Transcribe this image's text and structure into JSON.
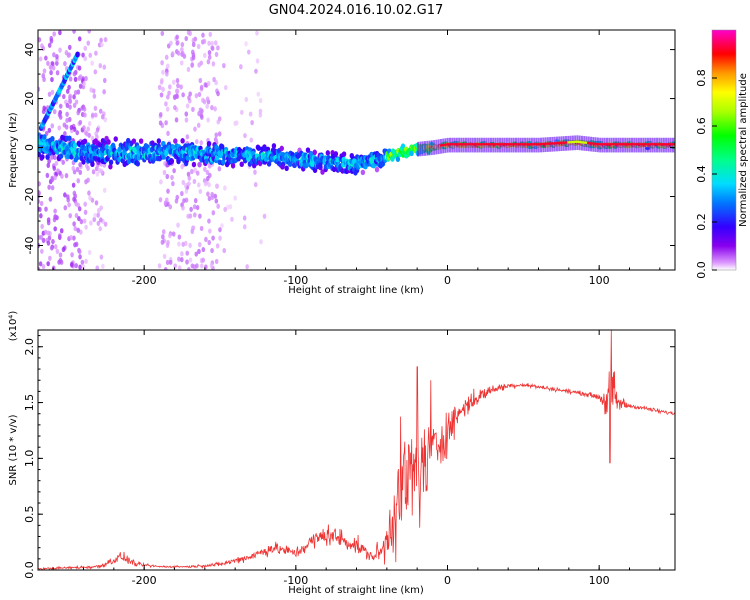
{
  "title": "GN04.2024.016.10.02.G17",
  "chart_data": [
    {
      "type": "heatmap",
      "name": "spectrogram",
      "xlabel": "Height of straight line (km)",
      "ylabel": "Frequency (Hz)",
      "xlim": [
        -270,
        150
      ],
      "ylim": [
        -50,
        48
      ],
      "xticks": [
        -200,
        -100,
        0,
        100
      ],
      "yticks": [
        -40,
        -20,
        0,
        20,
        40
      ],
      "ridge": [
        [
          -268,
          1
        ],
        [
          -240,
          -2
        ],
        [
          -200,
          -2
        ],
        [
          -170,
          -2
        ],
        [
          -140,
          -3
        ],
        [
          -120,
          -3
        ],
        [
          -100,
          -5
        ],
        [
          -80,
          -6
        ],
        [
          -60,
          -7
        ],
        [
          -40,
          -4
        ],
        [
          -25,
          -1
        ],
        [
          -10,
          0
        ],
        [
          0,
          1
        ],
        [
          20,
          1
        ],
        [
          60,
          1
        ],
        [
          85,
          2
        ],
        [
          100,
          1
        ],
        [
          150,
          1
        ]
      ],
      "colorbar": {
        "label": "Normalized spectral amplitude",
        "range": [
          0,
          1
        ],
        "ticks": [
          0.0,
          0.2,
          0.4,
          0.6,
          0.8
        ],
        "tick_labels": [
          "0.0",
          "0.2",
          "0.4",
          "0.6",
          "0.8"
        ]
      }
    },
    {
      "type": "line",
      "name": "snr",
      "xlabel": "Height of straight line (km)",
      "ylabel": "SNR (10 * v/v)",
      "scale_label": "(x10⁴)",
      "xlim": [
        -270,
        150
      ],
      "ylim": [
        0,
        2.15
      ],
      "xticks": [
        -200,
        -100,
        0,
        100
      ],
      "yticks": [
        0.0,
        0.5,
        1.0,
        1.5,
        2.0
      ],
      "ytick_labels": [
        "0.0",
        "0.5",
        "1.0",
        "1.5",
        "2.0"
      ],
      "color": "#ee3333",
      "series": [
        {
          "name": "SNR envelope",
          "x": [
            -270,
            -250,
            -230,
            -215,
            -205,
            -190,
            -170,
            -150,
            -130,
            -115,
            -100,
            -90,
            -80,
            -70,
            -60,
            -50,
            -42,
            -38,
            -35,
            -30,
            -25,
            -20,
            -15,
            -10,
            -5,
            0,
            10,
            20,
            30,
            40,
            50,
            60,
            70,
            80,
            90,
            100,
            105,
            108,
            112,
            120,
            130,
            140,
            150
          ],
          "y": [
            0.01,
            0.02,
            0.03,
            0.12,
            0.05,
            0.03,
            0.03,
            0.05,
            0.12,
            0.2,
            0.15,
            0.25,
            0.32,
            0.28,
            0.22,
            0.12,
            0.18,
            0.4,
            0.55,
            0.75,
            0.82,
            0.85,
            0.95,
            1.05,
            1.15,
            1.25,
            1.45,
            1.55,
            1.62,
            1.65,
            1.66,
            1.64,
            1.62,
            1.6,
            1.58,
            1.55,
            1.5,
            1.6,
            1.5,
            1.47,
            1.45,
            1.42,
            1.4
          ],
          "noise": [
            0.01,
            0.01,
            0.02,
            0.05,
            0.02,
            0.01,
            0.01,
            0.02,
            0.04,
            0.06,
            0.05,
            0.08,
            0.1,
            0.1,
            0.08,
            0.05,
            0.15,
            0.3,
            0.45,
            0.5,
            0.55,
            0.55,
            0.4,
            0.3,
            0.25,
            0.2,
            0.12,
            0.08,
            0.04,
            0.03,
            0.02,
            0.02,
            0.02,
            0.02,
            0.02,
            0.03,
            0.15,
            0.4,
            0.1,
            0.02,
            0.02,
            0.02,
            0.02
          ]
        }
      ]
    }
  ]
}
